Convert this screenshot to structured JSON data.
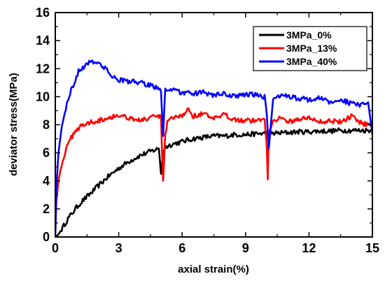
{
  "chart_data": {
    "type": "line",
    "title": "",
    "xlabel": "axial strain(%)",
    "ylabel": "deviator stress(MPa)",
    "xlim": [
      0,
      15
    ],
    "ylim": [
      0,
      16
    ],
    "xticks": [
      0,
      3,
      6,
      9,
      12,
      15
    ],
    "yticks": [
      0,
      2,
      4,
      6,
      8,
      10,
      12,
      14,
      16
    ],
    "grid": false,
    "legend_position": "top-right",
    "series": [
      {
        "name": "3MPa_0%",
        "color": "#000000",
        "x": [
          0,
          0.1,
          0.2,
          0.4,
          0.6,
          0.8,
          1.0,
          1.3,
          1.6,
          2.0,
          2.5,
          3.0,
          3.5,
          4.0,
          4.5,
          4.9,
          5.0,
          5.1,
          5.2,
          5.5,
          6.0,
          6.5,
          7.0,
          7.5,
          8.0,
          8.5,
          9.0,
          9.5,
          10.0,
          10.05,
          10.1,
          10.5,
          11.0,
          11.5,
          12.0,
          12.5,
          13.0,
          13.5,
          14.0,
          14.5,
          15.0
        ],
        "y": [
          0,
          0.1,
          0.3,
          0.8,
          1.3,
          1.7,
          2.1,
          2.6,
          3.0,
          3.6,
          4.3,
          4.9,
          5.4,
          5.8,
          6.1,
          6.3,
          4.5,
          6.1,
          6.4,
          6.6,
          6.8,
          7.0,
          7.1,
          7.2,
          7.2,
          7.3,
          7.3,
          7.35,
          7.4,
          7.2,
          7.4,
          7.4,
          7.45,
          7.5,
          7.5,
          7.55,
          7.55,
          7.6,
          7.6,
          7.6,
          7.6
        ]
      },
      {
        "name": "3MPa_13%",
        "color": "#ff0000",
        "x": [
          0,
          0.05,
          0.15,
          0.3,
          0.5,
          0.7,
          0.9,
          1.2,
          1.5,
          2.0,
          2.5,
          3.0,
          3.5,
          4.0,
          4.5,
          5.0,
          5.05,
          5.1,
          5.2,
          5.3,
          5.6,
          6.0,
          6.3,
          6.5,
          7.0,
          7.5,
          8.0,
          8.5,
          9.0,
          9.5,
          9.9,
          10.0,
          10.05,
          10.1,
          10.3,
          10.6,
          11.0,
          11.5,
          12.0,
          12.5,
          13.0,
          13.5,
          14.0,
          14.5,
          15.0
        ],
        "y": [
          0,
          2.5,
          4.0,
          5.2,
          6.2,
          6.9,
          7.5,
          7.9,
          8.1,
          8.3,
          8.5,
          8.7,
          8.5,
          8.3,
          8.5,
          8.6,
          6.0,
          4.0,
          7.2,
          8.2,
          8.5,
          8.6,
          9.2,
          8.6,
          8.8,
          8.4,
          8.7,
          8.4,
          8.3,
          8.3,
          8.4,
          6.5,
          4.1,
          7.5,
          8.3,
          8.5,
          8.2,
          8.4,
          8.5,
          8.2,
          8.3,
          8.2,
          8.6,
          8.1,
          8.0
        ]
      },
      {
        "name": "3MPa_40%",
        "color": "#0000ff",
        "x": [
          0,
          0.05,
          0.15,
          0.3,
          0.5,
          0.7,
          0.9,
          1.1,
          1.4,
          1.7,
          2.0,
          2.3,
          2.6,
          3.0,
          3.5,
          4.0,
          4.5,
          4.9,
          5.0,
          5.1,
          5.2,
          5.4,
          5.7,
          6.0,
          6.5,
          7.0,
          7.5,
          8.0,
          8.5,
          9.0,
          9.5,
          9.9,
          10.0,
          10.1,
          10.3,
          10.6,
          11.0,
          11.5,
          12.0,
          12.5,
          13.0,
          13.5,
          14.0,
          14.5,
          14.8,
          15.0
        ],
        "y": [
          0,
          3.5,
          6.0,
          7.8,
          9.2,
          10.3,
          11.0,
          11.8,
          12.2,
          12.6,
          12.4,
          12.1,
          11.6,
          11.2,
          11.1,
          11.0,
          10.8,
          10.6,
          10.4,
          7.2,
          10.6,
          10.5,
          10.4,
          10.3,
          10.2,
          10.3,
          10.1,
          10.2,
          10.0,
          10.2,
          10.1,
          10.0,
          8.8,
          6.3,
          9.8,
          10.1,
          10.0,
          9.9,
          9.8,
          9.9,
          9.6,
          9.8,
          9.5,
          9.4,
          9.6,
          7.3
        ]
      }
    ]
  }
}
